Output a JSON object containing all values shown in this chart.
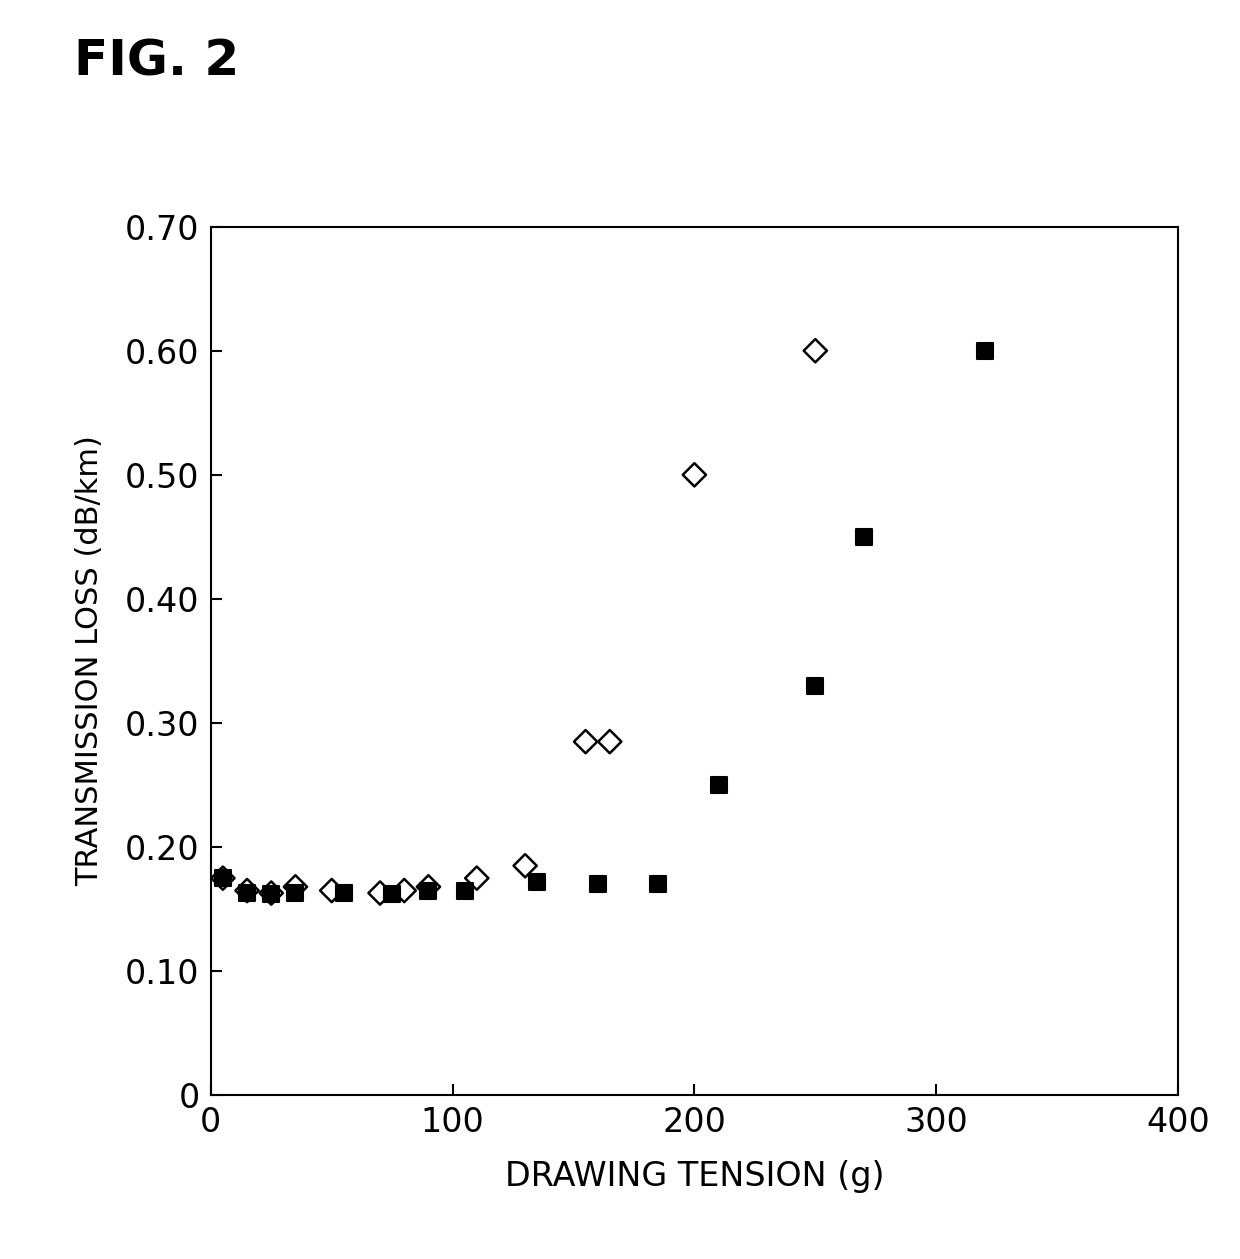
{
  "title": "FIG. 2",
  "xlabel": "DRAWING TENSION (g)",
  "ylabel": "TRANSMISSION LOSS (dB/km)",
  "xlim": [
    0,
    400
  ],
  "ylim": [
    0,
    0.7
  ],
  "xticks": [
    0,
    100,
    200,
    300,
    400
  ],
  "yticks": [
    0,
    0.1,
    0.2,
    0.3,
    0.4,
    0.5,
    0.6,
    0.7
  ],
  "diamond_open_x": [
    5,
    15,
    25,
    35,
    50,
    70,
    80,
    90,
    110,
    130,
    155,
    165,
    200,
    250
  ],
  "diamond_open_y": [
    0.175,
    0.165,
    0.163,
    0.168,
    0.165,
    0.163,
    0.165,
    0.168,
    0.175,
    0.185,
    0.285,
    0.285,
    0.5,
    0.6
  ],
  "square_filled_x": [
    5,
    15,
    25,
    35,
    55,
    75,
    90,
    105,
    135,
    160,
    185,
    210,
    250,
    270,
    320
  ],
  "square_filled_y": [
    0.175,
    0.163,
    0.162,
    0.163,
    0.163,
    0.162,
    0.165,
    0.165,
    0.172,
    0.17,
    0.17,
    0.25,
    0.33,
    0.45,
    0.6
  ],
  "marker_size": 140,
  "bg_color": "#ffffff",
  "spine_color": "#000000",
  "tick_labelsize": 24,
  "xlabel_fontsize": 24,
  "ylabel_fontsize": 22,
  "title_fontsize": 36
}
